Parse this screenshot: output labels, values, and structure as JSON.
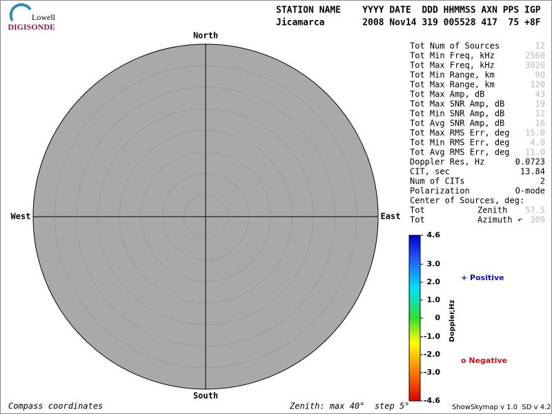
{
  "logo": {
    "top": "Lowell",
    "bottom": "DIGISONDE"
  },
  "header": {
    "labels": "STATION NAME    YYYY DATE  DDD HHMMSS AXN PPS IGP",
    "values": "Jicamarca       2008 Nov14 319 005528 417  75 +8F"
  },
  "compass": {
    "north": "North",
    "south": "South",
    "west": "West",
    "east": "East"
  },
  "totals": [
    {
      "label": "Tot Num of Sources",
      "value": "12"
    },
    {
      "label": "Tot Min Freq, kHz",
      "value": "2560"
    },
    {
      "label": "Tot Max Freq, kHz",
      "value": "3020"
    },
    {
      "label": "Tot Min Range, km",
      "value": "90"
    },
    {
      "label": "Tot Max Range, km",
      "value": "120"
    },
    {
      "label": "Tot Max Amp, dB",
      "value": "43"
    },
    {
      "label": "Tot Max SNR Amp, dB",
      "value": "19"
    },
    {
      "label": "Tot Min SNR Amp, dB",
      "value": "12"
    },
    {
      "label": "Tot Avg SNR Amp, dB",
      "value": "16"
    },
    {
      "label": "Tot Max RMS Err, deg",
      "value": "15.0"
    },
    {
      "label": "Tot Min RMS Err, deg",
      "value": "4.0"
    },
    {
      "label": "Tot Avg RMS Err, deg",
      "value": "11.0"
    }
  ],
  "parameters": [
    {
      "label": "Doppler Res, Hz",
      "value": "0.0723"
    },
    {
      "label": "CIT, sec",
      "value": "13.84"
    },
    {
      "label": "Num of CITs",
      "value": "2"
    },
    {
      "label": "Polarization",
      "value": "O-mode"
    }
  ],
  "center": {
    "title": "Center of Sources, deg:",
    "rows": [
      {
        "label": "Tot",
        "name": "Zenith",
        "value": "57.5"
      },
      {
        "label": "Tot",
        "name": "Azimuth ↶",
        "value": "309"
      }
    ]
  },
  "colorbar": {
    "title": "Doppler,Hz",
    "ticks": [
      "4.6",
      "3.0",
      "2.0",
      "1.0",
      "0",
      "-1.0",
      "-2.0",
      "-3.0",
      "-4.6"
    ],
    "positive": "+ Positive",
    "negative": "o Negative"
  },
  "footer": {
    "left": "Compass coordinates",
    "middle": "Zenith: max 40°  step 5°",
    "right": "ShowSkymap v 1.0  SD v 4.2"
  }
}
